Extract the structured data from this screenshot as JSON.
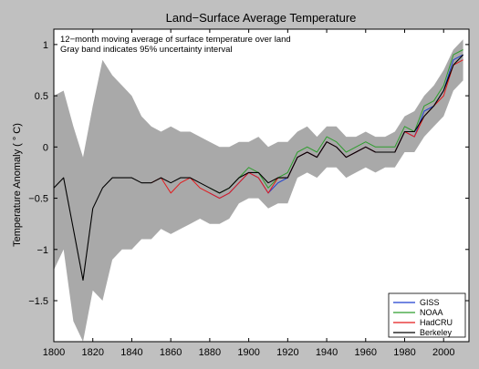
{
  "chart_data": {
    "type": "line",
    "title": "Land−Surface Average Temperature",
    "notes": [
      "12−month moving average of surface temperature over land",
      "Gray band indicates 95% uncertainty interval"
    ],
    "xlabel": "",
    "ylabel": "Temperature Anomaly ( ° C)",
    "xlim": [
      1800,
      2013
    ],
    "ylim": [
      -1.9,
      1.15
    ],
    "x_ticks": [
      "1800",
      "1820",
      "1840",
      "1860",
      "1880",
      "1900",
      "1920",
      "1940",
      "1960",
      "1980",
      "2000"
    ],
    "y_ticks": [
      "1",
      "0.5",
      "0",
      "−0.5",
      "−1",
      "−1.5"
    ],
    "grid": false,
    "legend": "bottom-right",
    "colors": {
      "GISS": "#1f3fcf",
      "NOAA": "#2e9d2e",
      "HadCRU": "#e31a1c",
      "Berkeley": "#000000",
      "uncertainty_band": "#a9a9a9",
      "figure_background": "#c0c0c0"
    },
    "uncertainty_band": {
      "name": "95% uncertainty interval",
      "x": [
        1800,
        1805,
        1810,
        1815,
        1820,
        1825,
        1830,
        1835,
        1840,
        1845,
        1850,
        1855,
        1860,
        1865,
        1870,
        1875,
        1880,
        1885,
        1890,
        1895,
        1900,
        1905,
        1910,
        1915,
        1920,
        1925,
        1930,
        1935,
        1940,
        1945,
        1950,
        1955,
        1960,
        1965,
        1970,
        1975,
        1980,
        1985,
        1990,
        1995,
        2000,
        2005,
        2010
      ],
      "lower": [
        -1.2,
        -1.0,
        -1.7,
        -1.9,
        -1.4,
        -1.5,
        -1.1,
        -1.0,
        -1.0,
        -0.9,
        -0.9,
        -0.8,
        -0.85,
        -0.8,
        -0.75,
        -0.7,
        -0.75,
        -0.75,
        -0.7,
        -0.55,
        -0.5,
        -0.5,
        -0.6,
        -0.55,
        -0.55,
        -0.3,
        -0.25,
        -0.3,
        -0.2,
        -0.2,
        -0.3,
        -0.25,
        -0.2,
        -0.25,
        -0.2,
        -0.2,
        -0.05,
        -0.05,
        0.1,
        0.2,
        0.3,
        0.55,
        0.65
      ],
      "upper": [
        0.5,
        0.55,
        0.2,
        -0.1,
        0.4,
        0.85,
        0.7,
        0.6,
        0.5,
        0.3,
        0.2,
        0.15,
        0.2,
        0.15,
        0.15,
        0.1,
        0.05,
        0.0,
        0.0,
        0.05,
        0.05,
        0.1,
        0.0,
        0.05,
        0.05,
        0.15,
        0.2,
        0.1,
        0.2,
        0.2,
        0.1,
        0.1,
        0.15,
        0.1,
        0.1,
        0.15,
        0.3,
        0.35,
        0.5,
        0.6,
        0.75,
        0.95,
        1.05
      ]
    },
    "series": [
      {
        "name": "GISS",
        "x": [
          1880,
          1885,
          1890,
          1895,
          1900,
          1905,
          1910,
          1915,
          1920,
          1925,
          1930,
          1935,
          1940,
          1945,
          1950,
          1955,
          1960,
          1965,
          1970,
          1975,
          1980,
          1985,
          1990,
          1995,
          2000,
          2005,
          2010
        ],
        "values": [
          -0.45,
          -0.5,
          -0.45,
          -0.35,
          -0.25,
          -0.3,
          -0.45,
          -0.35,
          -0.3,
          -0.1,
          -0.05,
          -0.1,
          0.05,
          0.0,
          -0.1,
          -0.05,
          0.0,
          -0.05,
          -0.05,
          -0.05,
          0.15,
          0.1,
          0.35,
          0.4,
          0.55,
          0.85,
          0.9
        ]
      },
      {
        "name": "NOAA",
        "x": [
          1880,
          1885,
          1890,
          1895,
          1900,
          1905,
          1910,
          1915,
          1920,
          1925,
          1930,
          1935,
          1940,
          1945,
          1950,
          1955,
          1960,
          1965,
          1970,
          1975,
          1980,
          1985,
          1990,
          1995,
          2000,
          2005,
          2010
        ],
        "values": [
          -0.4,
          -0.45,
          -0.4,
          -0.3,
          -0.2,
          -0.25,
          -0.4,
          -0.3,
          -0.25,
          -0.05,
          0.0,
          -0.05,
          0.1,
          0.05,
          -0.05,
          0.0,
          0.05,
          0.0,
          0.0,
          0.0,
          0.2,
          0.15,
          0.4,
          0.45,
          0.6,
          0.9,
          0.95
        ]
      },
      {
        "name": "HadCRU",
        "x": [
          1850,
          1855,
          1860,
          1865,
          1870,
          1875,
          1880,
          1885,
          1890,
          1895,
          1900,
          1905,
          1910,
          1915,
          1920,
          1925,
          1930,
          1935,
          1940,
          1945,
          1950,
          1955,
          1960,
          1965,
          1970,
          1975,
          1980,
          1985,
          1990,
          1995,
          2000,
          2005,
          2010
        ],
        "values": [
          -0.35,
          -0.3,
          -0.45,
          -0.35,
          -0.3,
          -0.4,
          -0.45,
          -0.5,
          -0.45,
          -0.35,
          -0.25,
          -0.3,
          -0.45,
          -0.3,
          -0.3,
          -0.1,
          -0.05,
          -0.1,
          0.05,
          0.0,
          -0.1,
          -0.05,
          0.0,
          -0.05,
          -0.05,
          -0.05,
          0.15,
          0.1,
          0.3,
          0.4,
          0.5,
          0.8,
          0.85
        ]
      },
      {
        "name": "Berkeley",
        "x": [
          1800,
          1805,
          1810,
          1815,
          1820,
          1825,
          1830,
          1835,
          1840,
          1845,
          1850,
          1855,
          1860,
          1865,
          1870,
          1875,
          1880,
          1885,
          1890,
          1895,
          1900,
          1905,
          1910,
          1915,
          1920,
          1925,
          1930,
          1935,
          1940,
          1945,
          1950,
          1955,
          1960,
          1965,
          1970,
          1975,
          1980,
          1985,
          1990,
          1995,
          2000,
          2005,
          2010
        ],
        "values": [
          -0.4,
          -0.3,
          -0.8,
          -1.3,
          -0.6,
          -0.4,
          -0.3,
          -0.3,
          -0.3,
          -0.35,
          -0.35,
          -0.3,
          -0.35,
          -0.3,
          -0.3,
          -0.35,
          -0.4,
          -0.45,
          -0.4,
          -0.3,
          -0.25,
          -0.25,
          -0.35,
          -0.3,
          -0.3,
          -0.1,
          -0.05,
          -0.1,
          0.05,
          0.0,
          -0.1,
          -0.05,
          0.0,
          -0.05,
          -0.05,
          -0.05,
          0.15,
          0.15,
          0.3,
          0.4,
          0.55,
          0.8,
          0.9
        ]
      }
    ]
  }
}
